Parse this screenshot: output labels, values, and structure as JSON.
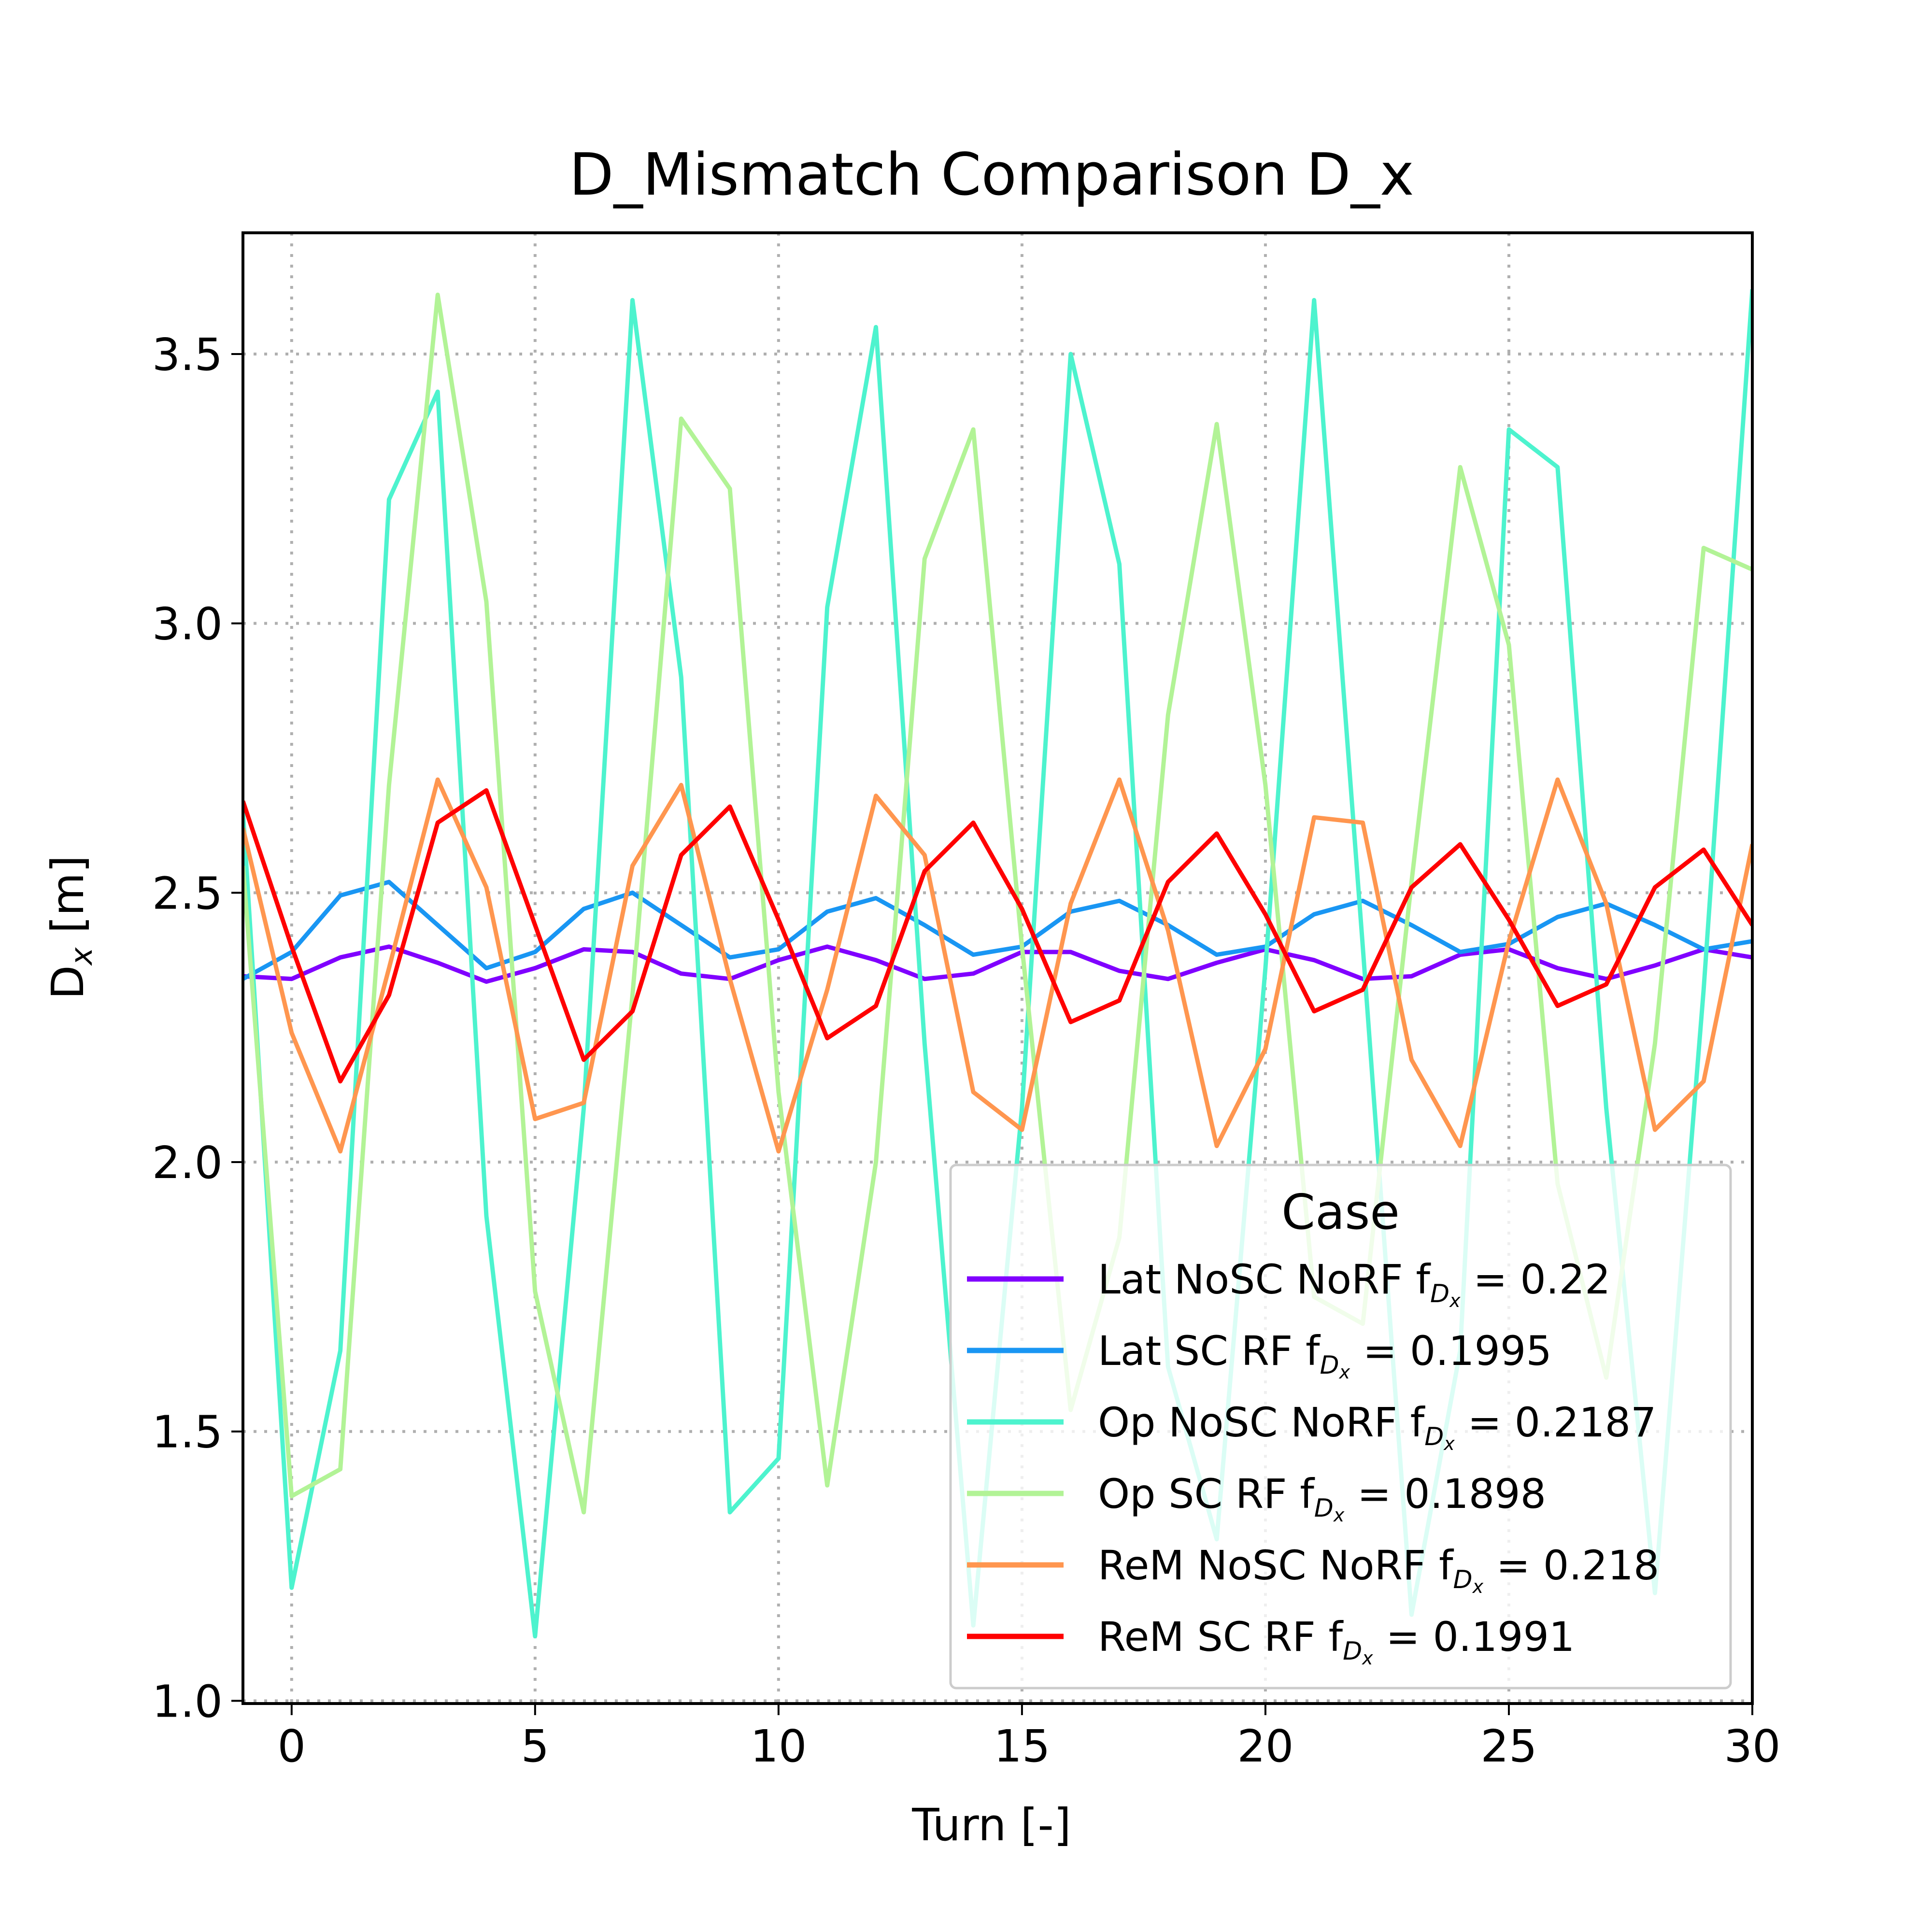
{
  "chart_data": {
    "type": "line",
    "title": "D_Mismatch Comparison D_x",
    "xlabel": "Turn [-]",
    "ylabel": {
      "main": "D",
      "sub": "x",
      "unit": " [m]"
    },
    "xlim": [
      -1,
      30
    ],
    "ylim": [
      0.995,
      3.725
    ],
    "xticks": [
      "0",
      "5",
      "10",
      "15",
      "20",
      "25",
      "30"
    ],
    "yticks": [
      "1.0",
      "1.5",
      "2.0",
      "2.5",
      "3.0",
      "3.5"
    ],
    "grid": true,
    "legend": {
      "title": "Case",
      "placement": "lower-right"
    },
    "x": [
      -1,
      0,
      1,
      2,
      3,
      4,
      5,
      6,
      7,
      8,
      9,
      10,
      11,
      12,
      13,
      14,
      15,
      16,
      17,
      18,
      19,
      20,
      21,
      22,
      23,
      24,
      25,
      26,
      27,
      28,
      29,
      30
    ],
    "series": [
      {
        "name": "Lat NoSC NoRF",
        "tune_value": "0.22",
        "color": "#8000ff",
        "values": [
          2.345,
          2.34,
          2.38,
          2.4,
          2.37,
          2.335,
          2.36,
          2.395,
          2.39,
          2.35,
          2.34,
          2.375,
          2.4,
          2.375,
          2.34,
          2.35,
          2.39,
          2.39,
          2.355,
          2.34,
          2.37,
          2.395,
          2.375,
          2.34,
          2.345,
          2.385,
          2.395,
          2.36,
          2.34,
          2.365,
          2.395,
          2.38
        ]
      },
      {
        "name": "Lat SC RF",
        "tune_value": "0.1995",
        "color": "#1996f3",
        "values": [
          2.34,
          2.39,
          2.495,
          2.52,
          2.44,
          2.36,
          2.39,
          2.47,
          2.5,
          2.44,
          2.38,
          2.395,
          2.465,
          2.49,
          2.44,
          2.385,
          2.4,
          2.465,
          2.485,
          2.44,
          2.385,
          2.4,
          2.46,
          2.485,
          2.44,
          2.39,
          2.405,
          2.455,
          2.48,
          2.44,
          2.395,
          2.41
        ]
      },
      {
        "name": "Op NoSC NoRF",
        "tune_value": "0.2187",
        "color": "#4df3ce",
        "values": [
          2.65,
          1.21,
          1.65,
          3.23,
          3.43,
          1.9,
          1.12,
          2.1,
          3.6,
          2.9,
          1.35,
          1.45,
          3.03,
          3.55,
          2.22,
          1.14,
          2.1,
          3.5,
          3.11,
          1.62,
          1.3,
          2.36,
          3.6,
          2.4,
          1.16,
          1.65,
          3.36,
          3.29,
          2.1,
          1.2,
          2.32,
          3.62
        ]
      },
      {
        "name": "Op SC RF",
        "tune_value": "0.1898",
        "color": "#b2f396",
        "values": [
          2.55,
          1.38,
          1.43,
          2.7,
          3.61,
          3.04,
          1.76,
          1.35,
          2.31,
          3.38,
          3.25,
          2.13,
          1.4,
          2.0,
          3.12,
          3.36,
          2.4,
          1.54,
          1.86,
          2.83,
          3.37,
          2.7,
          1.75,
          1.7,
          2.52,
          3.29,
          2.96,
          1.96,
          1.6,
          2.22,
          3.14,
          3.1
        ]
      },
      {
        "name": "ReM NoSC NoRF",
        "tune_value": "0.218",
        "color": "#ff964f",
        "values": [
          2.62,
          2.24,
          2.02,
          2.36,
          2.71,
          2.51,
          2.08,
          2.11,
          2.55,
          2.7,
          2.34,
          2.02,
          2.32,
          2.68,
          2.57,
          2.13,
          2.06,
          2.48,
          2.71,
          2.43,
          2.03,
          2.21,
          2.64,
          2.63,
          2.19,
          2.03,
          2.41,
          2.71,
          2.48,
          2.06,
          2.15,
          2.59
        ]
      },
      {
        "name": "ReM SC RF",
        "tune_value": "0.1991",
        "color": "#ff0000",
        "values": [
          2.67,
          2.4,
          2.15,
          2.31,
          2.63,
          2.69,
          2.44,
          2.19,
          2.28,
          2.57,
          2.66,
          2.45,
          2.23,
          2.29,
          2.54,
          2.63,
          2.47,
          2.26,
          2.3,
          2.52,
          2.61,
          2.46,
          2.28,
          2.32,
          2.51,
          2.59,
          2.45,
          2.29,
          2.33,
          2.51,
          2.58,
          2.44
        ]
      }
    ]
  }
}
